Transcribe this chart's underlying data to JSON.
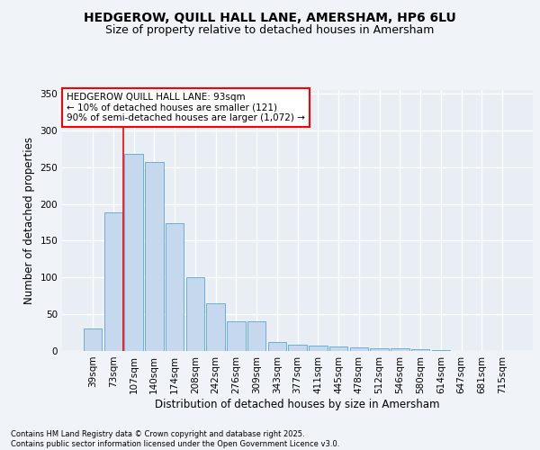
{
  "title_line1": "HEDGEROW, QUILL HALL LANE, AMERSHAM, HP6 6LU",
  "title_line2": "Size of property relative to detached houses in Amersham",
  "xlabel": "Distribution of detached houses by size in Amersham",
  "ylabel": "Number of detached properties",
  "bar_labels": [
    "39sqm",
    "73sqm",
    "107sqm",
    "140sqm",
    "174sqm",
    "208sqm",
    "242sqm",
    "276sqm",
    "309sqm",
    "343sqm",
    "377sqm",
    "411sqm",
    "445sqm",
    "478sqm",
    "512sqm",
    "546sqm",
    "580sqm",
    "614sqm",
    "647sqm",
    "681sqm",
    "715sqm"
  ],
  "bar_values": [
    30,
    188,
    268,
    257,
    174,
    100,
    65,
    41,
    40,
    12,
    9,
    7,
    6,
    5,
    4,
    4,
    2,
    1,
    0,
    0,
    0
  ],
  "bar_color": "#c5d8ed",
  "bar_edgecolor": "#6aaed6",
  "vline_x": 1.5,
  "vline_color": "red",
  "annotation_text": "HEDGEROW QUILL HALL LANE: 93sqm\n← 10% of detached houses are smaller (121)\n90% of semi-detached houses are larger (1,072) →",
  "annotation_box_edgecolor": "red",
  "annotation_fontsize": 7.5,
  "ylim": [
    0,
    355
  ],
  "yticks": [
    0,
    50,
    100,
    150,
    200,
    250,
    300,
    350
  ],
  "bg_color": "#e8eef4",
  "grid_color": "#ffffff",
  "footer_text": "Contains HM Land Registry data © Crown copyright and database right 2025.\nContains public sector information licensed under the Open Government Licence v3.0.",
  "title_fontsize": 10,
  "subtitle_fontsize": 9,
  "xlabel_fontsize": 8.5,
  "ylabel_fontsize": 8.5,
  "tick_fontsize": 7.5
}
